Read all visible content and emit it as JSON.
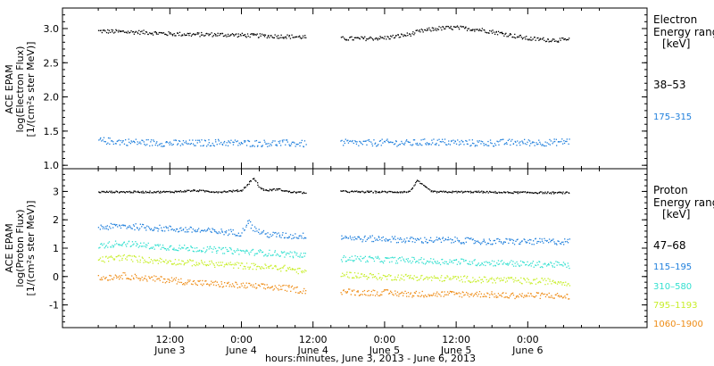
{
  "chart_data": [
    {
      "type": "scatter",
      "panel": "electron",
      "ylabel": [
        "ACE EPAM",
        "log(Electron Flux)",
        "[1/(cm²s ster MeV)]"
      ],
      "ylim": [
        0.95,
        3.3
      ],
      "yticks": [
        "1.0",
        "1.5",
        "2.0",
        "2.5",
        "3.0"
      ],
      "ytick_values": [
        1.0,
        1.5,
        2.0,
        2.5,
        3.0
      ],
      "legend": {
        "title": [
          "Electron",
          "Energy ranges",
          "[keV]"
        ],
        "placement": "right"
      },
      "series": [
        {
          "name": "38–53",
          "color": "#000000",
          "x_hours": [
            0,
            4,
            8,
            12,
            16,
            20,
            24,
            28,
            32,
            34.8,
            40.5,
            44,
            48,
            52,
            54,
            57,
            60,
            64,
            68,
            72,
            76,
            79
          ],
          "y": [
            2.97,
            2.96,
            2.95,
            2.93,
            2.92,
            2.92,
            2.91,
            2.9,
            2.89,
            2.88,
            2.86,
            2.86,
            2.87,
            2.92,
            2.97,
            3.01,
            3.02,
            2.99,
            2.93,
            2.86,
            2.84,
            2.84
          ]
        },
        {
          "name": "175–315",
          "color": "#1f7fdc",
          "x_hours": [
            0,
            4,
            8,
            12,
            16,
            20,
            24,
            28,
            32,
            34.8,
            40.5,
            44,
            48,
            52,
            56,
            60,
            64,
            68,
            72,
            76,
            79
          ],
          "y": [
            1.37,
            1.35,
            1.34,
            1.33,
            1.33,
            1.34,
            1.33,
            1.33,
            1.33,
            1.32,
            1.34,
            1.33,
            1.34,
            1.33,
            1.35,
            1.34,
            1.33,
            1.34,
            1.34,
            1.34,
            1.36
          ]
        }
      ]
    },
    {
      "type": "scatter",
      "panel": "proton",
      "ylabel": [
        "ACE EPAM",
        "log(Proton Flux)",
        "[1/(cm²s ster MeV)]"
      ],
      "ylim": [
        -1.8,
        3.8
      ],
      "yticks": [
        "-1",
        "0",
        "1",
        "2",
        "3"
      ],
      "ytick_values": [
        -1,
        0,
        1,
        2,
        3
      ],
      "legend": {
        "title": [
          "Proton",
          "Energy ranges",
          "[keV]"
        ],
        "placement": "right"
      },
      "series": [
        {
          "name": "47–68",
          "color": "#000000",
          "x_hours": [
            0,
            4,
            8,
            12,
            16,
            20,
            24,
            26,
            27,
            28,
            30,
            32,
            34.8,
            40.5,
            44,
            48,
            52,
            53.5,
            54.5,
            56,
            60,
            64,
            68,
            72,
            76,
            79
          ],
          "y": [
            3.0,
            3.0,
            3.0,
            3.0,
            3.05,
            3.0,
            3.05,
            3.5,
            3.15,
            3.05,
            3.1,
            3.0,
            2.97,
            3.02,
            3.0,
            3.0,
            3.0,
            3.4,
            3.2,
            3.0,
            3.0,
            3.0,
            2.98,
            2.98,
            2.97,
            2.97
          ]
        },
        {
          "name": "115–195",
          "color": "#1f7fdc",
          "x_hours": [
            0,
            4,
            8,
            12,
            16,
            20,
            24,
            25,
            26,
            28,
            32,
            36,
            40,
            44,
            48,
            52,
            56,
            60,
            64,
            68,
            72,
            76,
            79
          ],
          "y": [
            1.75,
            1.8,
            1.75,
            1.7,
            1.65,
            1.6,
            1.55,
            2.0,
            1.7,
            1.5,
            1.45,
            1.45,
            1.45,
            1.35,
            1.35,
            1.3,
            1.3,
            1.3,
            1.25,
            1.25,
            1.25,
            1.25,
            1.25
          ]
        },
        {
          "name": "310–580",
          "color": "#33e0d0",
          "x_hours": [
            0,
            4,
            8,
            12,
            16,
            20,
            24,
            28,
            32,
            34.8,
            40.5,
            44,
            48,
            52,
            56,
            60,
            64,
            68,
            72,
            76,
            79
          ],
          "y": [
            1.1,
            1.2,
            1.1,
            1.05,
            1.0,
            0.95,
            0.9,
            0.85,
            0.8,
            0.75,
            0.65,
            0.65,
            0.6,
            0.6,
            0.55,
            0.55,
            0.5,
            0.5,
            0.45,
            0.45,
            0.4
          ]
        },
        {
          "name": "795–1193",
          "color": "#c8ee2a",
          "x_hours": [
            0,
            4,
            8,
            12,
            16,
            20,
            24,
            28,
            32,
            34.8,
            40.5,
            44,
            48,
            52,
            56,
            60,
            64,
            68,
            72,
            76,
            79
          ],
          "y": [
            0.6,
            0.7,
            0.6,
            0.55,
            0.5,
            0.45,
            0.4,
            0.35,
            0.3,
            0.15,
            0.1,
            0.05,
            0.0,
            0.0,
            -0.05,
            -0.05,
            -0.1,
            -0.1,
            -0.15,
            -0.15,
            -0.2
          ]
        },
        {
          "name": "1060–1900",
          "color": "#ee8c16",
          "x_hours": [
            0,
            4,
            8,
            12,
            16,
            20,
            24,
            28,
            32,
            34.8,
            40.5,
            44,
            48,
            52,
            56,
            60,
            64,
            68,
            72,
            76,
            79
          ],
          "y": [
            -0.05,
            0.05,
            -0.05,
            -0.1,
            -0.2,
            -0.25,
            -0.3,
            -0.35,
            -0.4,
            -0.5,
            -0.5,
            -0.55,
            -0.55,
            -0.6,
            -0.6,
            -0.6,
            -0.6,
            -0.65,
            -0.65,
            -0.65,
            -0.7
          ]
        }
      ]
    }
  ],
  "xaxis": {
    "tick_hours": [
      12,
      24,
      36,
      48,
      60,
      72
    ],
    "tick_times": [
      "12:00",
      "0:00",
      "12:00",
      "0:00",
      "12:00",
      "0:00"
    ],
    "tick_days": [
      "June 3",
      "June 4",
      "June 4",
      "June 5",
      "June 5",
      "June 6"
    ],
    "xlim_hours": [
      -6,
      92
    ],
    "gap_hours": [
      34.8,
      40.5
    ],
    "title": "hours:minutes, June  3, 2013 - June  6, 2013"
  }
}
